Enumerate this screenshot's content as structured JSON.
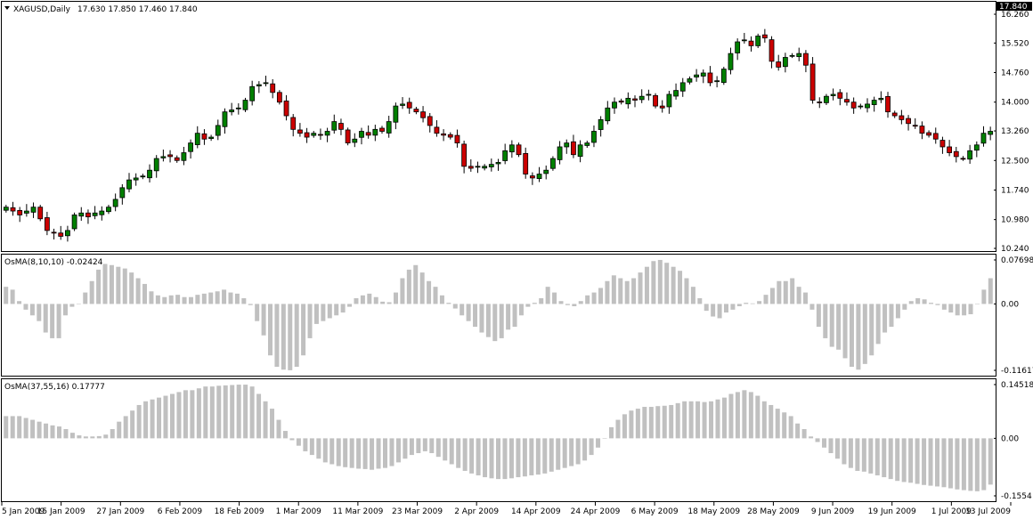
{
  "window": {
    "symbol_label": "XAGUSD,Daily",
    "ohlc_label": "17.630 17.850 17.460 17.840"
  },
  "colors": {
    "background": "#ffffff",
    "frame": "#000000",
    "bull": "#008000",
    "bear": "#cc0000",
    "wick": "#000000",
    "histogram": "#c0c0c0"
  },
  "chart_data": [
    {
      "type": "candlestick",
      "title": "XAGUSD,Daily 17.630 17.850 17.460 17.840",
      "y_ticks": [
        "16.260",
        "15.520",
        "14.760",
        "14.000",
        "13.260",
        "12.500",
        "11.740",
        "10.980",
        "10.240"
      ],
      "ylim": [
        10.24,
        16.26
      ],
      "x_ticks": [
        "5 Jan 2009",
        "15 Jan 2009",
        "27 Jan 2009",
        "6 Feb 2009",
        "18 Feb 2009",
        "1 Mar 2009",
        "11 Mar 2009",
        "23 Mar 2009",
        "2 Apr 2009",
        "14 Apr 2009",
        "24 Apr 2009",
        "6 May 2009",
        "18 May 2009",
        "28 May 2009",
        "9 Jun 2009",
        "19 Jun 2009",
        "1 Jul 2009",
        "13 Jul 2009"
      ],
      "close": [
        11.3,
        11.2,
        11.1,
        11.2,
        11.3,
        11.0,
        10.7,
        10.65,
        10.55,
        10.7,
        11.1,
        11.15,
        11.05,
        11.15,
        11.2,
        11.3,
        11.5,
        11.8,
        12.0,
        12.05,
        12.1,
        12.25,
        12.55,
        12.6,
        12.6,
        12.5,
        12.7,
        12.95,
        13.2,
        13.05,
        13.1,
        13.4,
        13.75,
        13.8,
        13.85,
        14.05,
        14.4,
        14.45,
        14.5,
        14.25,
        14.0,
        13.65,
        13.3,
        13.2,
        13.1,
        13.2,
        13.15,
        13.25,
        13.5,
        13.3,
        12.95,
        13.05,
        13.25,
        13.15,
        13.3,
        13.25,
        13.5,
        13.9,
        13.95,
        13.85,
        13.75,
        13.6,
        13.4,
        13.2,
        13.15,
        13.1,
        12.95,
        12.35,
        12.3,
        12.35,
        12.35,
        12.4,
        12.45,
        12.75,
        12.9,
        12.65,
        12.15,
        12.05,
        12.15,
        12.25,
        12.55,
        12.85,
        12.95,
        12.65,
        12.9,
        12.95,
        13.25,
        13.55,
        13.85,
        14.0,
        14.0,
        14.1,
        14.05,
        14.15,
        14.2,
        13.9,
        13.85,
        14.2,
        14.3,
        14.5,
        14.6,
        14.7,
        14.75,
        14.5,
        14.55,
        14.85,
        15.25,
        15.55,
        15.6,
        15.45,
        15.7,
        15.65,
        15.05,
        14.9,
        15.15,
        15.2,
        15.25,
        14.95,
        14.05,
        14.0,
        14.15,
        14.2,
        14.1,
        14.0,
        13.85,
        13.9,
        13.95,
        14.05,
        14.1,
        13.75,
        13.65,
        13.55,
        13.45,
        13.4,
        13.2,
        13.15,
        13.05,
        12.85,
        12.7,
        12.6,
        12.55,
        12.75,
        12.9,
        13.2,
        13.25
      ],
      "line_marker": "17.840"
    },
    {
      "type": "bar",
      "title": "OsMA(8,10,10) -0.02424",
      "y_ticks": [
        "0.07698",
        "0.00",
        "-0.11617"
      ],
      "ylim": [
        -0.11617,
        0.07698
      ],
      "values": [
        0.03,
        0.025,
        0.005,
        -0.01,
        -0.02,
        -0.03,
        -0.05,
        -0.06,
        -0.06,
        -0.02,
        -0.005,
        0.0,
        0.02,
        0.04,
        0.06,
        0.07,
        0.068,
        0.065,
        0.062,
        0.055,
        0.045,
        0.035,
        0.022,
        0.015,
        0.012,
        0.015,
        0.016,
        0.012,
        0.012,
        0.016,
        0.018,
        0.02,
        0.022,
        0.025,
        0.02,
        0.018,
        0.01,
        -0.002,
        -0.03,
        -0.055,
        -0.09,
        -0.11,
        -0.115,
        -0.116,
        -0.11,
        -0.09,
        -0.06,
        -0.035,
        -0.03,
        -0.025,
        -0.02,
        -0.015,
        -0.005,
        0.01,
        0.015,
        0.018,
        0.012,
        0.004,
        0.003,
        0.02,
        0.045,
        0.06,
        0.068,
        0.055,
        0.04,
        0.03,
        0.015,
        0.002,
        -0.008,
        -0.02,
        -0.03,
        -0.04,
        -0.05,
        -0.058,
        -0.065,
        -0.06,
        -0.045,
        -0.04,
        -0.02,
        -0.005,
        0.002,
        0.01,
        0.03,
        0.02,
        0.005,
        -0.002,
        -0.004,
        0.005,
        0.015,
        0.02,
        0.028,
        0.04,
        0.05,
        0.045,
        0.04,
        0.045,
        0.055,
        0.065,
        0.075,
        0.077,
        0.072,
        0.065,
        0.058,
        0.045,
        0.03,
        0.01,
        -0.012,
        -0.022,
        -0.025,
        -0.015,
        -0.01,
        -0.004,
        0.002,
        0.001,
        0.005,
        0.016,
        0.028,
        0.04,
        0.04,
        0.045,
        0.03,
        0.02,
        -0.01,
        -0.04,
        -0.06,
        -0.075,
        -0.08,
        -0.095,
        -0.11,
        -0.115,
        -0.105,
        -0.09,
        -0.07,
        -0.05,
        -0.04,
        -0.025,
        -0.01,
        0.005,
        0.01,
        0.008,
        0.002,
        -0.002,
        -0.01,
        -0.015,
        -0.02,
        -0.02,
        -0.018,
        0.0,
        0.025,
        0.045
      ]
    },
    {
      "type": "bar",
      "title": "OsMA(37,55,16) 0.17777",
      "y_ticks": [
        "0.14518",
        "0.00",
        "-0.1554"
      ],
      "ylim": [
        -0.1554,
        0.14518
      ],
      "values": [
        0.06,
        0.06,
        0.06,
        0.055,
        0.05,
        0.045,
        0.04,
        0.035,
        0.032,
        0.025,
        0.015,
        0.008,
        0.005,
        0.005,
        0.006,
        0.01,
        0.025,
        0.045,
        0.06,
        0.075,
        0.09,
        0.1,
        0.105,
        0.11,
        0.115,
        0.12,
        0.125,
        0.13,
        0.13,
        0.135,
        0.14,
        0.14,
        0.142,
        0.143,
        0.144,
        0.145,
        0.145,
        0.14,
        0.12,
        0.1,
        0.08,
        0.05,
        0.02,
        -0.005,
        -0.02,
        -0.035,
        -0.045,
        -0.055,
        -0.065,
        -0.07,
        -0.075,
        -0.078,
        -0.08,
        -0.082,
        -0.083,
        -0.085,
        -0.082,
        -0.08,
        -0.075,
        -0.065,
        -0.055,
        -0.045,
        -0.04,
        -0.035,
        -0.04,
        -0.05,
        -0.06,
        -0.07,
        -0.08,
        -0.088,
        -0.095,
        -0.1,
        -0.105,
        -0.108,
        -0.11,
        -0.11,
        -0.108,
        -0.105,
        -0.103,
        -0.1,
        -0.098,
        -0.095,
        -0.09,
        -0.085,
        -0.08,
        -0.075,
        -0.07,
        -0.06,
        -0.045,
        -0.025,
        0.0,
        0.03,
        0.05,
        0.065,
        0.075,
        0.08,
        0.085,
        0.085,
        0.087,
        0.088,
        0.09,
        0.095,
        0.1,
        0.1,
        0.1,
        0.098,
        0.1,
        0.105,
        0.11,
        0.12,
        0.125,
        0.13,
        0.125,
        0.115,
        0.1,
        0.09,
        0.08,
        0.07,
        0.06,
        0.04,
        0.025,
        0.005,
        -0.01,
        -0.025,
        -0.04,
        -0.055,
        -0.07,
        -0.08,
        -0.088,
        -0.09,
        -0.095,
        -0.1,
        -0.105,
        -0.11,
        -0.115,
        -0.118,
        -0.12,
        -0.123,
        -0.126,
        -0.128,
        -0.13,
        -0.132,
        -0.135,
        -0.138,
        -0.14,
        -0.142,
        -0.143,
        -0.14,
        -0.125
      ]
    }
  ]
}
